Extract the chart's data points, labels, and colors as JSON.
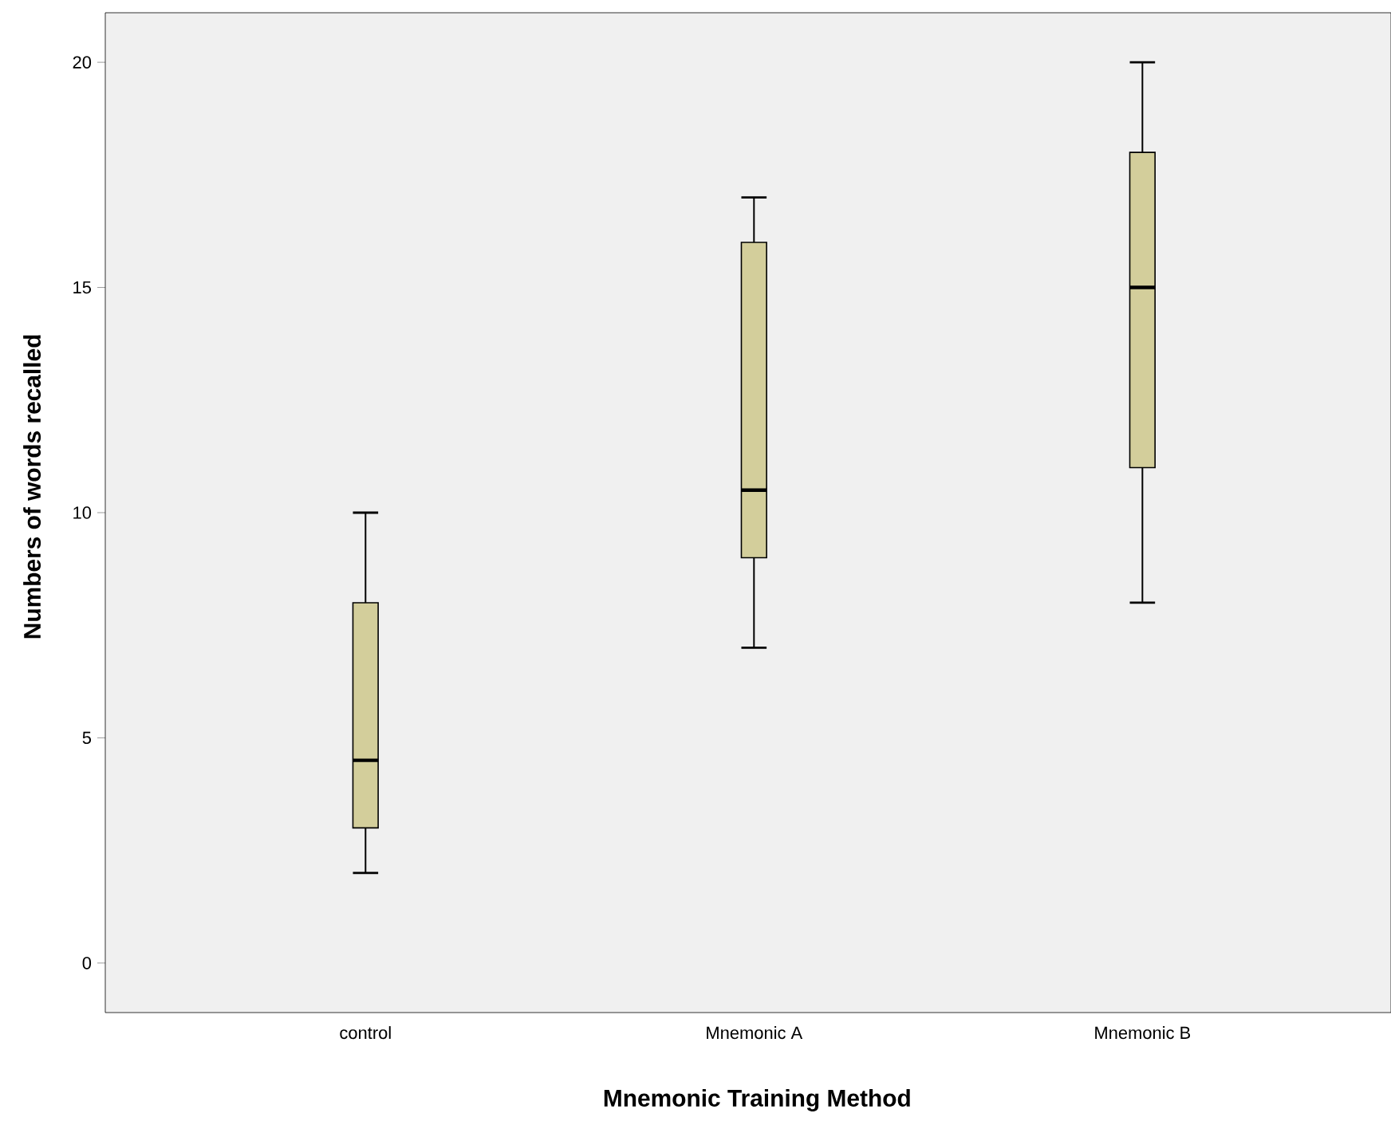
{
  "chart_data": {
    "type": "box",
    "xlabel": "Mnemonic Training Method",
    "ylabel": "Numbers of words recalled",
    "categories": [
      "control",
      "Mnemonic A",
      "Mnemonic B"
    ],
    "boxes": [
      {
        "low": 2,
        "q1": 3,
        "median": 4.5,
        "q3": 8,
        "high": 10
      },
      {
        "low": 7,
        "q1": 9,
        "median": 10.5,
        "q3": 16,
        "high": 17
      },
      {
        "low": 8,
        "q1": 11,
        "median": 15,
        "q3": 18,
        "high": 20
      }
    ],
    "color": "#d3ce9b",
    "ylim": [
      -1.1,
      21.1
    ],
    "yticks": [
      0,
      5,
      10,
      15,
      20
    ]
  }
}
